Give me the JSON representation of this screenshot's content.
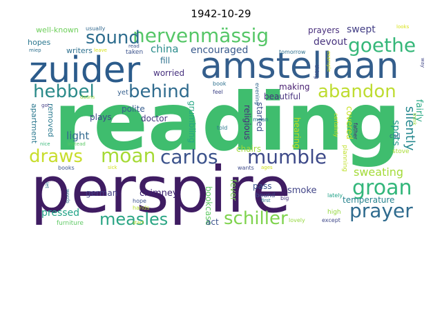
{
  "title": "1942-10-29",
  "words": [
    {
      "text": "reading",
      "color": "#3fbd6e"
    },
    {
      "text": "perspire",
      "color": "#3f1c62"
    },
    {
      "text": "zuider",
      "color": "#2b5b8b"
    },
    {
      "text": "amstellaan",
      "color": "#345e8c"
    },
    {
      "text": "nervenmässig",
      "color": "#55c667"
    },
    {
      "text": "hebbel",
      "color": "#2a8a89"
    },
    {
      "text": "behind",
      "color": "#2f6b8e"
    },
    {
      "text": "abandon",
      "color": "#bedc31"
    },
    {
      "text": "sound",
      "color": "#2e6d8e"
    },
    {
      "text": "goethe",
      "color": "#35b779"
    },
    {
      "text": "draws",
      "color": "#c8dd2c"
    },
    {
      "text": "moan",
      "color": "#a5da35"
    },
    {
      "text": "carlos",
      "color": "#3b528b"
    },
    {
      "text": "mumble",
      "color": "#3e4a89"
    },
    {
      "text": "groan",
      "color": "#32b67a"
    },
    {
      "text": "prayer",
      "color": "#2f6b8e"
    },
    {
      "text": "measles",
      "color": "#2aa584"
    },
    {
      "text": "schiller",
      "color": "#7fd34e"
    },
    {
      "text": "china",
      "color": "#2b8c8c"
    },
    {
      "text": "encouraged",
      "color": "#38598c"
    },
    {
      "text": "swept",
      "color": "#433e85"
    },
    {
      "text": "devout",
      "color": "#46327e"
    },
    {
      "text": "prayers",
      "color": "#472d7b"
    },
    {
      "text": "sweating",
      "color": "#a3db38"
    },
    {
      "text": "silently",
      "color": "#24878e"
    },
    {
      "text": "spots",
      "color": "#1f978b"
    },
    {
      "text": "fairly",
      "color": "#2ba985"
    },
    {
      "text": "light",
      "color": "#31688e"
    },
    {
      "text": "plays",
      "color": "#3f4889"
    },
    {
      "text": "polite",
      "color": "#365d8d"
    },
    {
      "text": "doctor",
      "color": "#44387f"
    },
    {
      "text": "yet",
      "color": "#355f8d"
    },
    {
      "text": "pressed",
      "color": "#20a386"
    },
    {
      "text": "german",
      "color": "#433e85"
    },
    {
      "text": "chimney",
      "color": "#3b1f6f"
    },
    {
      "text": "bookcase",
      "color": "#5ec962"
    },
    {
      "text": "fever",
      "color": "#7ad151"
    },
    {
      "text": "pass",
      "color": "#3a548c"
    },
    {
      "text": "smoke",
      "color": "#414487"
    },
    {
      "text": "temperature",
      "color": "#26828e"
    },
    {
      "text": "act",
      "color": "#3b528b"
    },
    {
      "text": "making",
      "color": "#481f70"
    },
    {
      "text": "beautiful",
      "color": "#46307e"
    },
    {
      "text": "religious",
      "color": "#472a7a"
    },
    {
      "text": "grumbling",
      "color": "#26a784"
    },
    {
      "text": "started",
      "color": "#3c4f8a"
    },
    {
      "text": "hearing",
      "color": "#c2df23"
    },
    {
      "text": "covered",
      "color": "#c8e020"
    },
    {
      "text": "chairs",
      "color": "#a0da39"
    },
    {
      "text": "worried",
      "color": "#46307e"
    },
    {
      "text": "fill",
      "color": "#2d708e"
    },
    {
      "text": "apartment",
      "color": "#2a778e"
    },
    {
      "text": "removed",
      "color": "#29798e"
    },
    {
      "text": "hopes",
      "color": "#2a768e"
    },
    {
      "text": "writers",
      "color": "#2d708e"
    },
    {
      "text": "well-known",
      "color": "#6cce59"
    },
    {
      "text": "usually",
      "color": "#31688e"
    },
    {
      "text": "taken",
      "color": "#3b528b"
    },
    {
      "text": "books",
      "color": "#3a548c"
    },
    {
      "text": "furniture",
      "color": "#5dc863"
    },
    {
      "text": "hands",
      "color": "#b5de2b"
    },
    {
      "text": "hope",
      "color": "#3b528b"
    },
    {
      "text": "lovely",
      "color": "#95d840"
    },
    {
      "text": "except",
      "color": "#3f4889"
    },
    {
      "text": "high",
      "color": "#95d840"
    },
    {
      "text": "lately",
      "color": "#1fa187"
    },
    {
      "text": "bound",
      "color": "#3e4a89"
    },
    {
      "text": "wants",
      "color": "#3e4a89"
    },
    {
      "text": "call",
      "color": "#31688e"
    },
    {
      "text": "stove",
      "color": "#a8db34"
    },
    {
      "text": "tomorrow",
      "color": "#2d708e"
    },
    {
      "text": "feel",
      "color": "#404688"
    },
    {
      "text": "book",
      "color": "#2d708e"
    },
    {
      "text": "told",
      "color": "#2a788e"
    },
    {
      "text": "mean",
      "color": "#2b758e"
    },
    {
      "text": "planning",
      "color": "#bddf26"
    },
    {
      "text": "father",
      "color": "#472878"
    },
    {
      "text": "certainly",
      "color": "#d2e21b"
    },
    {
      "text": "evening",
      "color": "#31688e"
    },
    {
      "text": "thing",
      "color": "#3e4989"
    },
    {
      "text": "think",
      "color": "#97d83f"
    },
    {
      "text": "looks",
      "color": "#d8e219"
    },
    {
      "text": "miep",
      "color": "#2d708e"
    },
    {
      "text": "leave",
      "color": "#d5e21a"
    },
    {
      "text": "read",
      "color": "#3a548c"
    },
    {
      "text": "first",
      "color": "#2a768e"
    },
    {
      "text": "big",
      "color": "#46327e"
    },
    {
      "text": "nice",
      "color": "#37b878"
    },
    {
      "text": "instead",
      "color": "#5ac864"
    },
    {
      "text": "daans",
      "color": "#9bd93c"
    },
    {
      "text": "sick",
      "color": "#d0e11c"
    },
    {
      "text": "start",
      "color": "#b8de29"
    },
    {
      "text": "let",
      "color": "#2d708e"
    },
    {
      "text": "words",
      "color": "#2d708e"
    },
    {
      "text": "ages",
      "color": "#cde11d"
    },
    {
      "text": "example",
      "color": "#d2e21b"
    },
    {
      "text": "way",
      "color": "#404688"
    },
    {
      "text": "got",
      "color": "#433e85"
    }
  ]
}
